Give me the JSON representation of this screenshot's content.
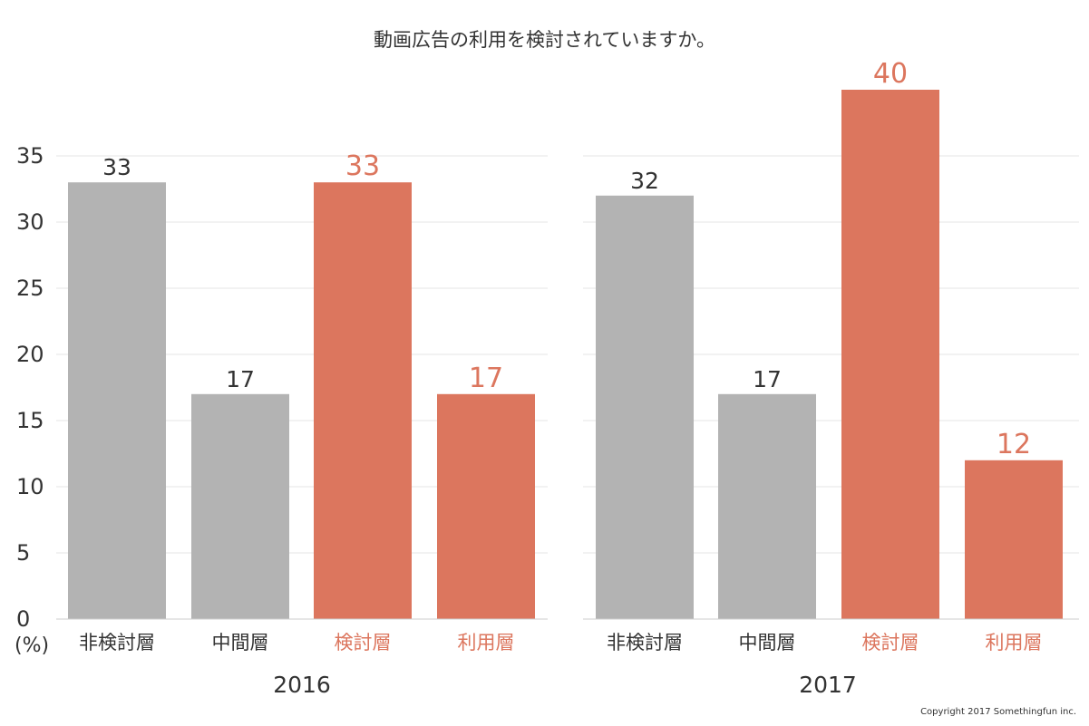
{
  "title": "動画広告の利用を検討されていますか。",
  "unit_label": "(%)",
  "copyright": "Copyright 2017 Somethingfun inc.",
  "colors": {
    "neutral": "#b3b3b3",
    "accent": "#dc765e",
    "grid": "#e6e6e6",
    "text": "#333333"
  },
  "chart_data": [
    {
      "type": "bar",
      "title": "",
      "xlabel": "2016",
      "ylabel": "(%)",
      "categories": [
        "非検討層",
        "中間層",
        "検討層",
        "利用層"
      ],
      "values": [
        33,
        17,
        33,
        17
      ],
      "highlight": [
        false,
        false,
        true,
        true
      ],
      "ylim": [
        0,
        40
      ],
      "yticks": [
        0,
        5,
        10,
        15,
        20,
        25,
        30,
        35
      ],
      "grid": true
    },
    {
      "type": "bar",
      "title": "",
      "xlabel": "2017",
      "ylabel": "(%)",
      "categories": [
        "非検討層",
        "中間層",
        "検討層",
        "利用層"
      ],
      "values": [
        32,
        17,
        40,
        12
      ],
      "highlight": [
        false,
        false,
        true,
        true
      ],
      "ylim": [
        0,
        40
      ],
      "yticks": [
        0,
        5,
        10,
        15,
        20,
        25,
        30,
        35
      ],
      "grid": true
    }
  ]
}
